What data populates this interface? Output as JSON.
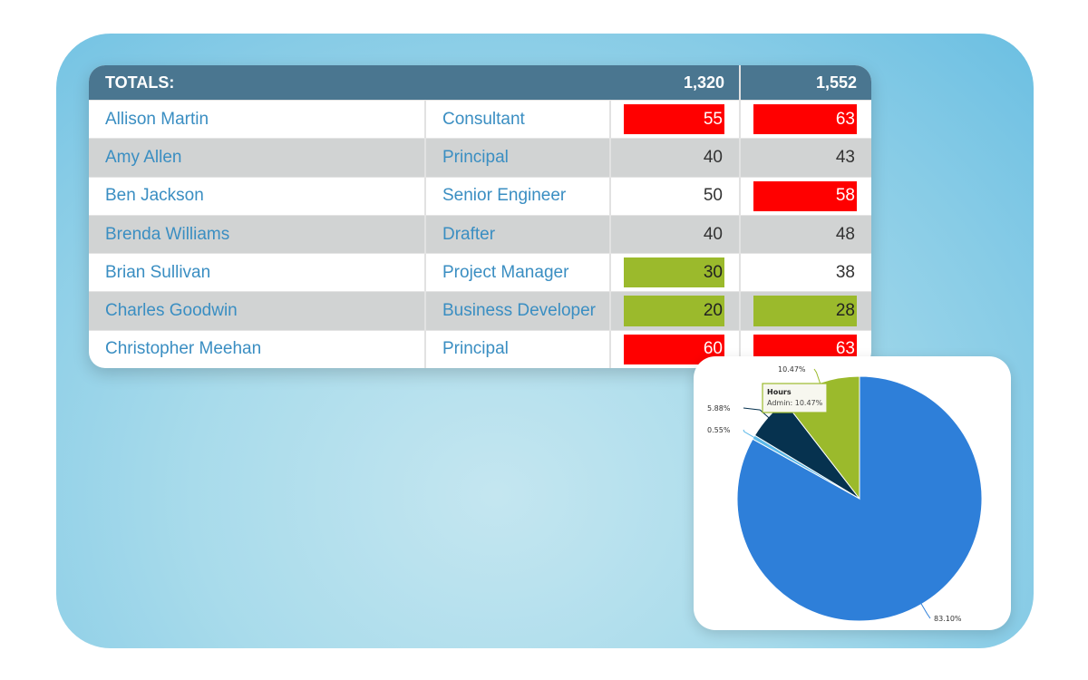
{
  "table": {
    "totals_label": "TOTALS:",
    "totals": [
      "1,320",
      "1,552"
    ],
    "rows": [
      {
        "name": "Allison Martin",
        "role": "Consultant",
        "v1": "55",
        "s1": "red",
        "v2": "63",
        "s2": "red"
      },
      {
        "name": "Amy Allen",
        "role": "Principal",
        "v1": "40",
        "s1": "",
        "v2": "43",
        "s2": ""
      },
      {
        "name": "Ben Jackson",
        "role": "Senior Engineer",
        "v1": "50",
        "s1": "",
        "v2": "58",
        "s2": "red"
      },
      {
        "name": "Brenda Williams",
        "role": "Drafter",
        "v1": "40",
        "s1": "",
        "v2": "48",
        "s2": ""
      },
      {
        "name": "Brian Sullivan",
        "role": "Project Manager",
        "v1": "30",
        "s1": "green",
        "v2": "38",
        "s2": ""
      },
      {
        "name": "Charles Goodwin",
        "role": "Business Developer",
        "v1": "20",
        "s1": "green",
        "v2": "28",
        "s2": "green"
      },
      {
        "name": "Christopher Meehan",
        "role": "Principal",
        "v1": "60",
        "s1": "red",
        "v2": "63",
        "s2": "red"
      }
    ]
  },
  "chart_data": {
    "type": "pie",
    "title": "Hours",
    "slices": [
      {
        "label": "83.10%",
        "value": 83.1,
        "color": "#2e7fd9"
      },
      {
        "label": "0.55%",
        "value": 0.55,
        "color": "#5bb8e8"
      },
      {
        "label": "5.88%",
        "value": 5.88,
        "color": "#06324f"
      },
      {
        "label": "10.47%",
        "value": 10.47,
        "color": "#9bba2c"
      }
    ],
    "tooltip": {
      "title": "Hours",
      "text": "Admin: 10.47%"
    }
  }
}
